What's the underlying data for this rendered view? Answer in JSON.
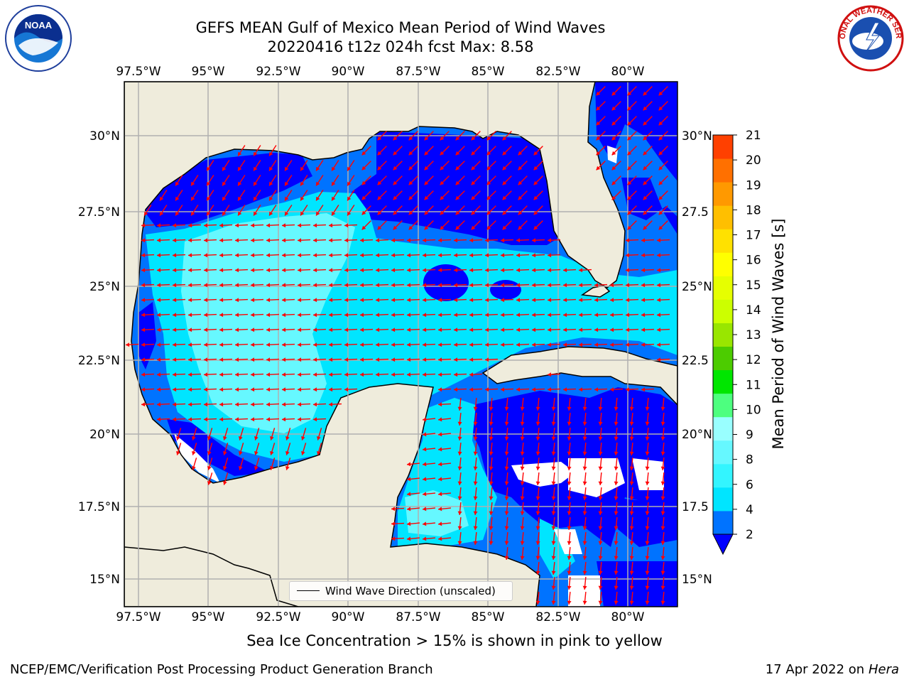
{
  "title": {
    "line1": "GEFS MEAN Gulf of Mexico Mean Period of Wind Waves",
    "line2": "20220416 t12z 024h fcst   Max: 8.58"
  },
  "map": {
    "lon_labels": [
      "97.5°W",
      "95°W",
      "92.5°W",
      "90°W",
      "87.5°W",
      "85°W",
      "82.5°W",
      "80°W"
    ],
    "lat_labels_left": [
      "30°N",
      "27.5°N",
      "25°N",
      "22.5°N",
      "20°N",
      "17.5°N",
      "15°N"
    ],
    "lat_labels_right": [
      "30°N",
      "27.5",
      "25°N",
      "22.5",
      "20°N",
      "17.5",
      "15°N"
    ],
    "legend_label": "Wind Wave Direction (unscaled)",
    "arrow_color": "#ff0000",
    "land_color": "#efecdc"
  },
  "colorbar": {
    "label": "Mean Period of Wind Waves [s]",
    "tick_labels": [
      "2",
      "4",
      "6",
      "8",
      "9",
      "10",
      "11",
      "12",
      "13",
      "14",
      "15",
      "16",
      "17",
      "18",
      "19",
      "20",
      "21"
    ],
    "colors": [
      "#0073ff",
      "#00e5ff",
      "#33f5ff",
      "#66f8ff",
      "#99ffff",
      "#4dff7f",
      "#00e600",
      "#4ccc00",
      "#99e600",
      "#ccff00",
      "#e6ff00",
      "#ffff00",
      "#ffe100",
      "#ffbf00",
      "#ff9900",
      "#ff7000",
      "#ff4000",
      "#ff1a00"
    ],
    "extend_color": "#0000ff"
  },
  "caption": "Sea Ice Concentration > 15% is shown in pink to yellow",
  "footer": {
    "left": "NCEP/EMC/Verification Post Processing Product Generation Branch",
    "right_date": "17 Apr 2022 on",
    "right_host": "Hera"
  },
  "logos": {
    "noaa": "NOAA",
    "nws": "NATIONAL WEATHER SERVICE"
  }
}
